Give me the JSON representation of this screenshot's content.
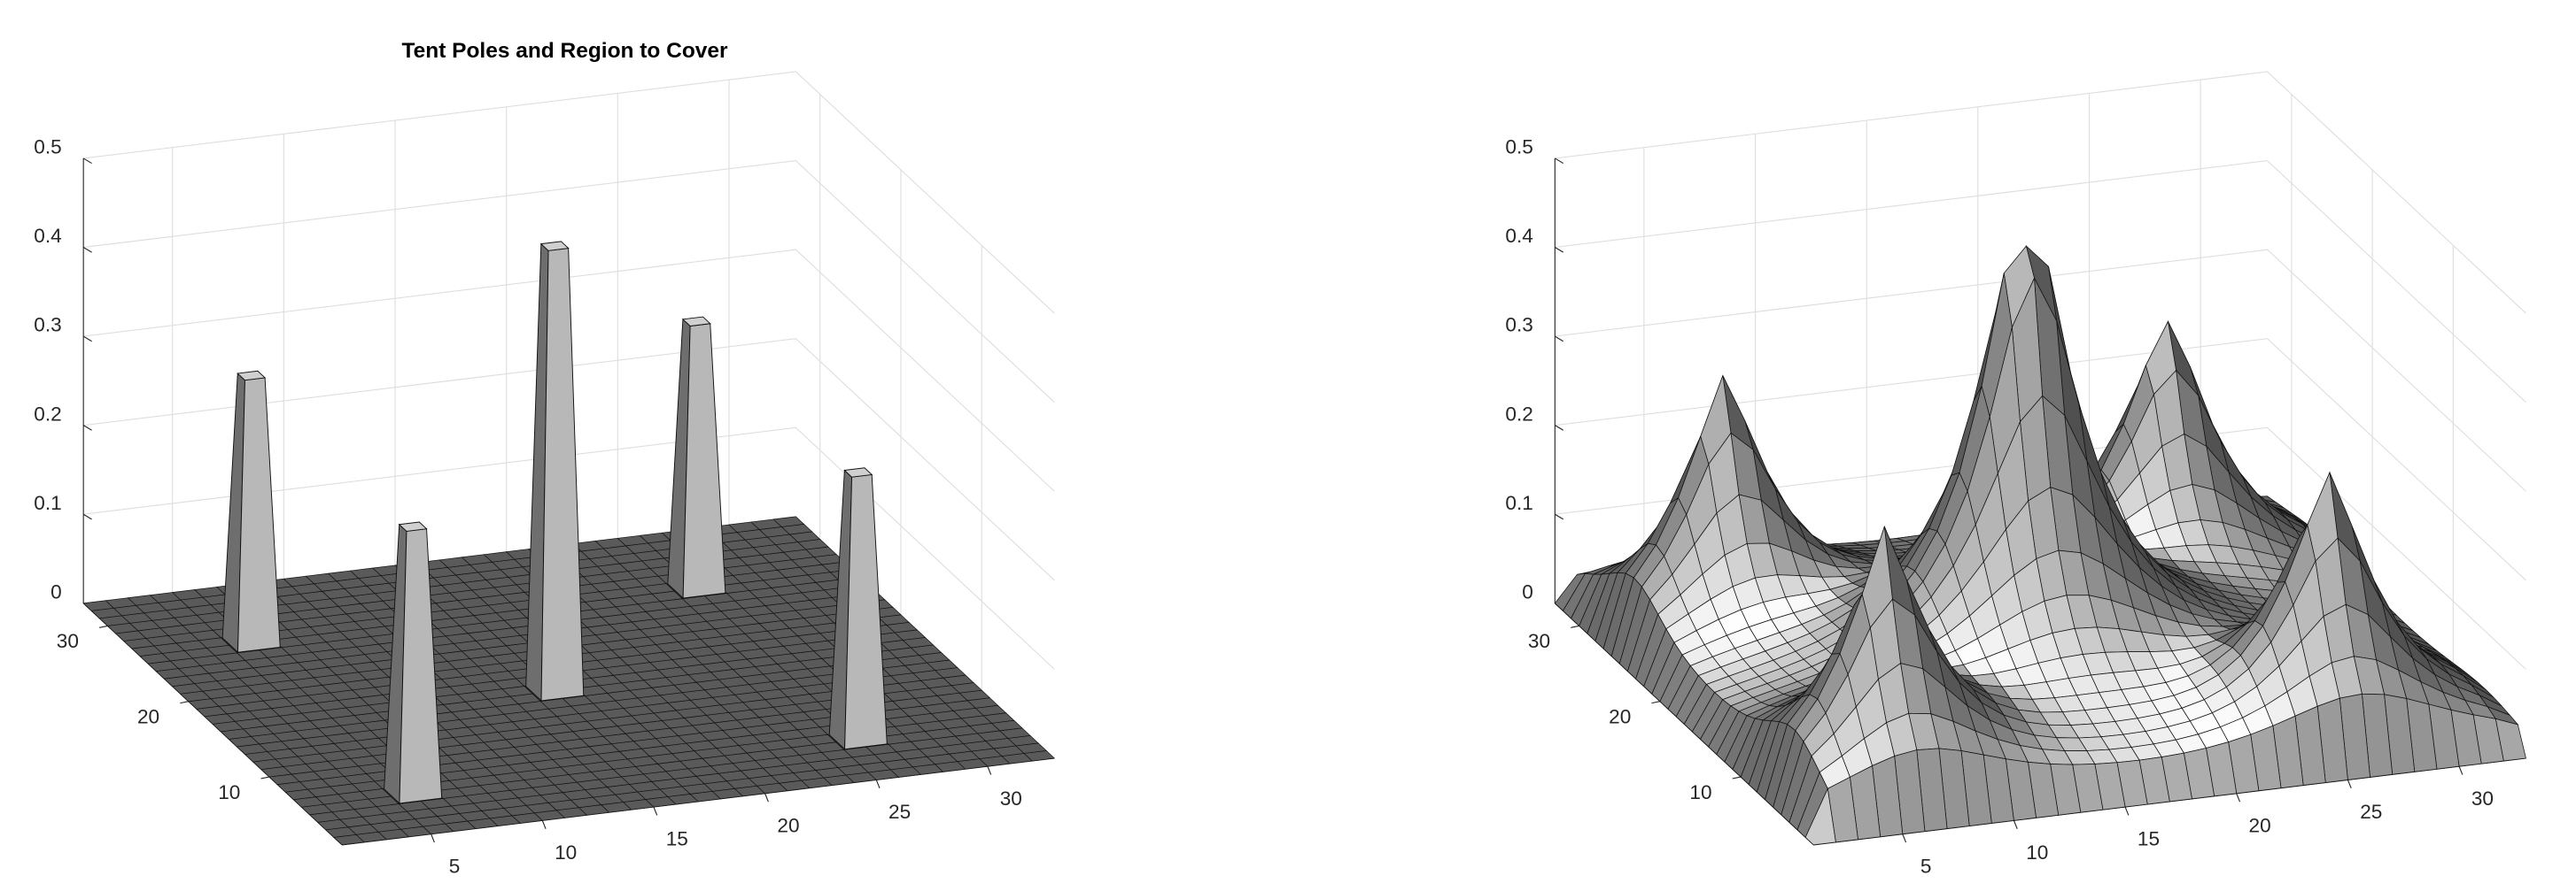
{
  "chart_data": [
    {
      "type": "poles",
      "title": "Tent Poles and Region to Cover",
      "x": [
        6,
        6,
        16,
        26,
        26
      ],
      "y": [
        26,
        6,
        16,
        26,
        6
      ],
      "values": [
        0.3,
        0.3,
        0.5,
        0.3,
        0.3
      ],
      "xlim": [
        1,
        33
      ],
      "ylim": [
        1,
        33
      ],
      "zlim": [
        0,
        0.5
      ],
      "xticks": [
        5,
        10,
        15,
        20,
        25,
        30
      ],
      "yticks": [
        10,
        20,
        30
      ],
      "zticks": [
        0,
        0.1,
        0.2,
        0.3,
        0.4,
        0.5
      ],
      "grid": true,
      "color": "#5a5a5a"
    },
    {
      "type": "tent",
      "x": [
        6,
        6,
        16,
        26,
        26
      ],
      "y": [
        26,
        6,
        16,
        26,
        6
      ],
      "values": [
        0.3,
        0.3,
        0.5,
        0.3,
        0.3
      ],
      "xlim": [
        1,
        33
      ],
      "ylim": [
        1,
        33
      ],
      "zlim": [
        0,
        0.5
      ],
      "xticks": [
        5,
        10,
        15,
        20,
        25,
        30
      ],
      "yticks": [
        10,
        20,
        30
      ],
      "zticks": [
        0,
        0.1,
        0.2,
        0.3,
        0.4,
        0.5
      ],
      "grid": true,
      "color": "#dcdcdc"
    }
  ]
}
